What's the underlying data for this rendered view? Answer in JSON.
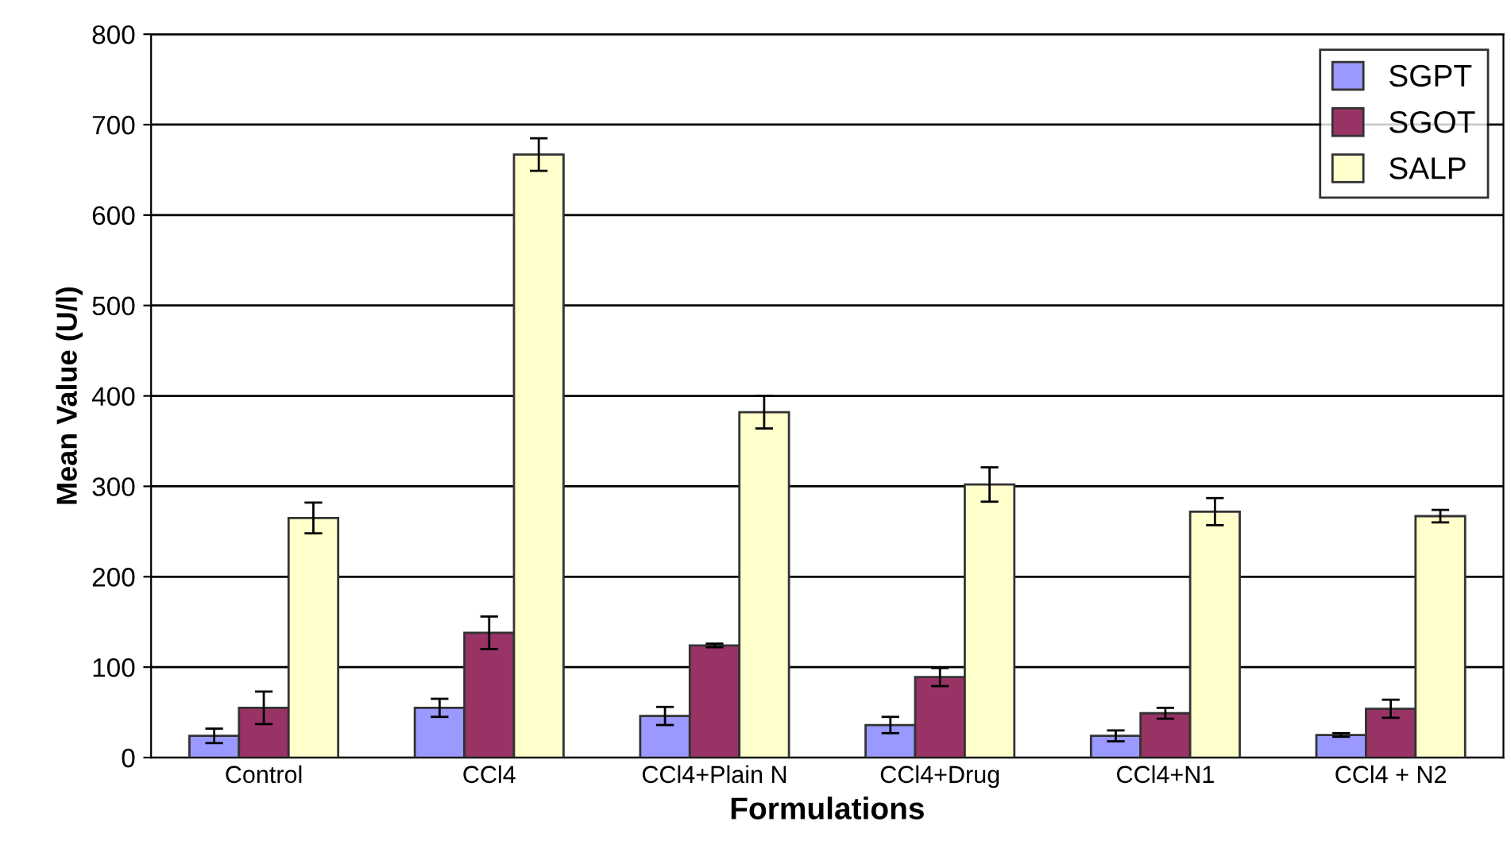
{
  "chart_data": {
    "type": "bar",
    "xlabel": "Formulations",
    "ylabel": "Mean Value (U/l)",
    "categories": [
      "Control",
      "CCl4",
      "CCl4+Plain N",
      "CCl4+Drug",
      "CCl4+N1",
      "CCl4 + N2"
    ],
    "series": [
      {
        "name": "SGPT",
        "color": "#9999ff",
        "values": [
          24,
          55,
          46,
          36,
          24,
          25
        ],
        "errors": [
          8,
          10,
          10,
          9,
          6,
          2
        ]
      },
      {
        "name": "SGOT",
        "color": "#993366",
        "values": [
          55,
          138,
          124,
          89,
          49,
          54
        ],
        "errors": [
          18,
          18,
          2,
          10,
          6,
          10
        ]
      },
      {
        "name": "SALP",
        "color": "#ffffcc",
        "values": [
          265,
          667,
          382,
          302,
          272,
          267
        ],
        "errors": [
          17,
          18,
          18,
          19,
          15,
          7
        ]
      }
    ],
    "ylim": [
      0,
      800
    ],
    "yticks": [
      0,
      100,
      200,
      300,
      400,
      500,
      600,
      700,
      800
    ],
    "grid": "y",
    "legend": "top right"
  }
}
